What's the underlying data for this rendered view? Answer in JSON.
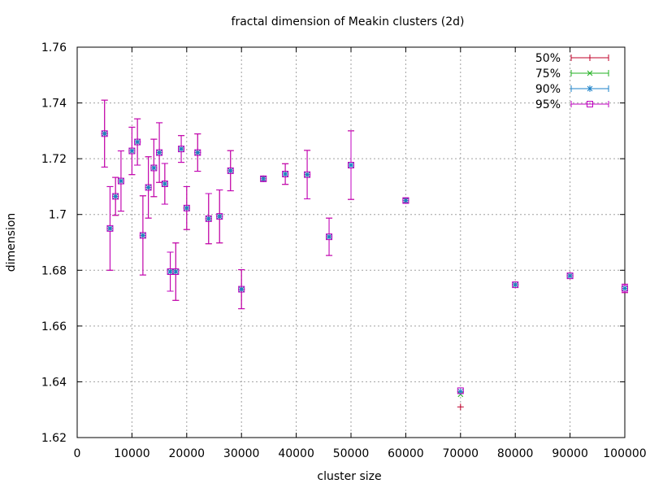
{
  "chart_data": {
    "type": "scatter",
    "title": "fractal dimension of Meakin clusters (2d)",
    "xlabel": "cluster size",
    "ylabel": "dimension",
    "xlim": [
      0,
      100000
    ],
    "ylim": [
      1.62,
      1.76
    ],
    "x_ticks": [
      0,
      10000,
      20000,
      30000,
      40000,
      50000,
      60000,
      70000,
      80000,
      90000,
      100000
    ],
    "x_tick_labels": [
      "0",
      "10000",
      "20000",
      "30000",
      "40000",
      "50000",
      "60000",
      "70000",
      "80000",
      "90000",
      "100000"
    ],
    "y_ticks": [
      1.62,
      1.64,
      1.66,
      1.68,
      1.7,
      1.72,
      1.74,
      1.76
    ],
    "y_tick_labels": [
      "1.62",
      "1.64",
      "1.66",
      "1.68",
      "1.7",
      "1.72",
      "1.74",
      "1.76"
    ],
    "grid": true,
    "legend_position": "top-right",
    "colors": {
      "s50": "#c0002a",
      "s75": "#20b020",
      "s90": "#1a80c8",
      "s95": "#c000c0"
    },
    "series": [
      {
        "name": "50%",
        "color": "#c0002a",
        "marker": "plus"
      },
      {
        "name": "75%",
        "color": "#20b020",
        "marker": "cross"
      },
      {
        "name": "90%",
        "color": "#1a80c8",
        "marker": "star"
      },
      {
        "name": "95%",
        "color": "#c000c0",
        "marker": "square"
      }
    ],
    "points": [
      {
        "x": 5000,
        "y": 1.729,
        "err": 0.012
      },
      {
        "x": 6000,
        "y": 1.695,
        "err": 0.015
      },
      {
        "x": 7000,
        "y": 1.7065,
        "err": 0.0068
      },
      {
        "x": 8000,
        "y": 1.712,
        "err": 0.0108
      },
      {
        "x": 10000,
        "y": 1.7228,
        "err": 0.0085
      },
      {
        "x": 11000,
        "y": 1.726,
        "err": 0.0083
      },
      {
        "x": 12000,
        "y": 1.6925,
        "err": 0.0142
      },
      {
        "x": 13000,
        "y": 1.7097,
        "err": 0.011
      },
      {
        "x": 14000,
        "y": 1.7167,
        "err": 0.0103
      },
      {
        "x": 15000,
        "y": 1.7222,
        "err": 0.0107
      },
      {
        "x": 16000,
        "y": 1.711,
        "err": 0.0073
      },
      {
        "x": 17000,
        "y": 1.6795,
        "err": 0.007
      },
      {
        "x": 18000,
        "y": 1.6795,
        "err": 0.0103
      },
      {
        "x": 19000,
        "y": 1.7235,
        "err": 0.0048
      },
      {
        "x": 20000,
        "y": 1.7023,
        "err": 0.0077
      },
      {
        "x": 22000,
        "y": 1.7222,
        "err": 0.0067
      },
      {
        "x": 24000,
        "y": 1.6985,
        "err": 0.009
      },
      {
        "x": 26000,
        "y": 1.6993,
        "err": 0.0095
      },
      {
        "x": 28000,
        "y": 1.7157,
        "err": 0.0072
      },
      {
        "x": 30000,
        "y": 1.6732,
        "err": 0.007
      },
      {
        "x": 34000,
        "y": 1.7128,
        "err": 0.0008
      },
      {
        "x": 38000,
        "y": 1.7145,
        "err": 0.0037
      },
      {
        "x": 42000,
        "y": 1.7143,
        "err": 0.0087
      },
      {
        "x": 46000,
        "y": 1.692,
        "err": 0.0067
      },
      {
        "x": 50000,
        "y": 1.7177,
        "err": 0.0123
      },
      {
        "x": 60000,
        "y": 1.705,
        "err": 0.0007
      },
      {
        "x": 70000,
        "y": 1.6368,
        "err": 0.0
      },
      {
        "x": 80000,
        "y": 1.6748,
        "err": 0.0
      },
      {
        "x": 90000,
        "y": 1.678,
        "err": 0.0
      },
      {
        "x": 100000,
        "y": 1.6735,
        "err": 0.0015
      }
    ],
    "offsets_70000": {
      "s50": 1.631,
      "s75": 1.6355,
      "s90": 1.6365,
      "s95": 1.6368
    }
  }
}
